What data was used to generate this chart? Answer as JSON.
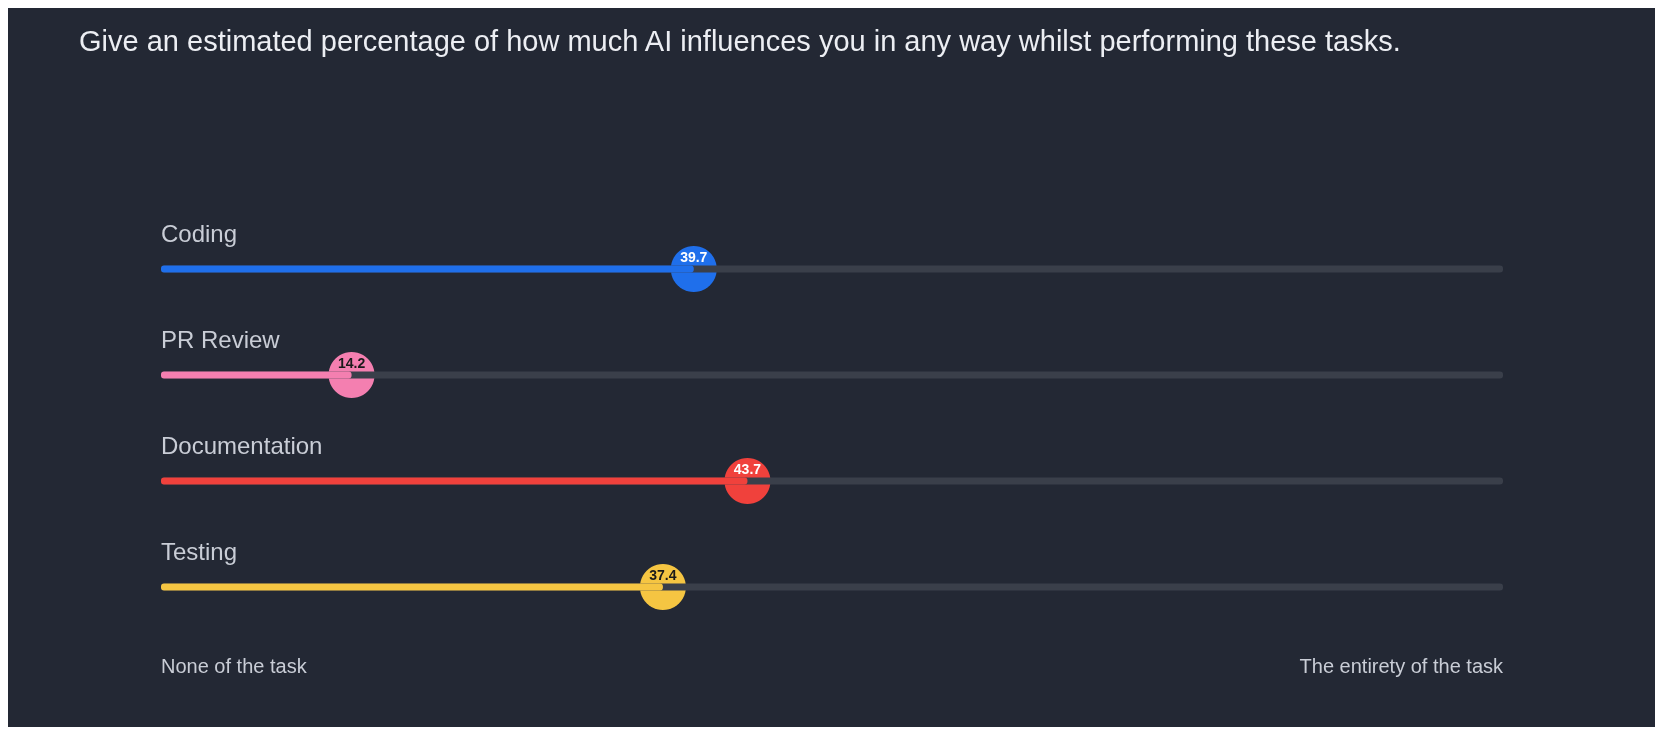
{
  "chart_data": {
    "type": "bar",
    "orientation": "horizontal",
    "title": "Give an estimated percentage of how much AI influences you in any way whilst performing these tasks.",
    "categories": [
      "Coding",
      "PR Review",
      "Documentation",
      "Testing"
    ],
    "values": [
      39.7,
      14.2,
      43.7,
      37.4
    ],
    "colors": [
      "#1f6feb",
      "#f47fb0",
      "#f0413c",
      "#f5c542"
    ],
    "xlim": [
      0,
      100
    ],
    "annotations": [
      "None of the task",
      "The entirety of the task"
    ],
    "data_labels": true
  }
}
